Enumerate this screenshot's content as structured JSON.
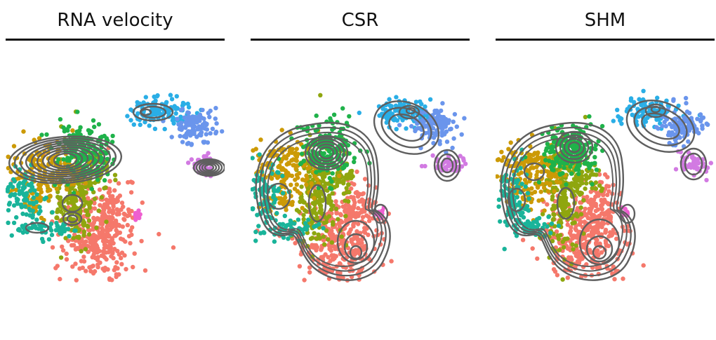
{
  "panels": [
    {
      "title": "RNA velocity"
    },
    {
      "title": "CSR"
    },
    {
      "title": "SHM"
    }
  ],
  "chart_data": [
    {
      "type": "scatter",
      "title": "RNA velocity",
      "xlabel": "",
      "ylabel": "",
      "grid": false,
      "legend": "none",
      "overlay": "density contours"
    },
    {
      "type": "scatter",
      "title": "CSR",
      "xlabel": "",
      "ylabel": "",
      "grid": false,
      "legend": "none",
      "overlay": "density contours"
    },
    {
      "type": "scatter",
      "title": "SHM",
      "xlabel": "",
      "ylabel": "",
      "grid": false,
      "legend": "none",
      "overlay": "density contours"
    }
  ],
  "cluster_colors": {
    "green": "#1fb24a",
    "gold": "#cc9a06",
    "olive": "#8fa60f",
    "salmon": "#f5786b",
    "teal": "#19b49a",
    "sky": "#2aaee6",
    "blue": "#6a95ec",
    "violet": "#d27ae2",
    "pink": "#ee5fd0"
  },
  "contour_color": "#5f5f5f"
}
